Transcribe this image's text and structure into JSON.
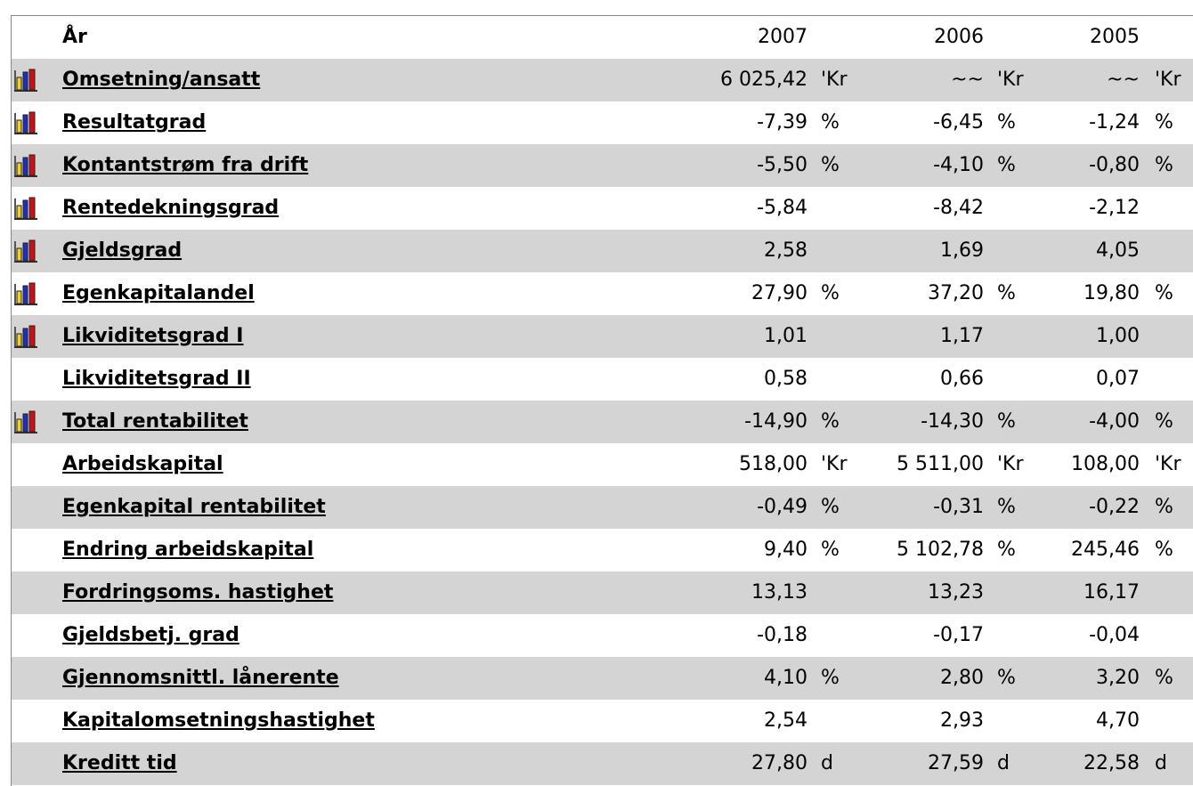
{
  "header": {
    "year_label": "År",
    "years": [
      "2007",
      "2006",
      "2005"
    ]
  },
  "rows": [
    {
      "label": "Omsetning/ansatt",
      "chart": true,
      "cells": [
        {
          "value": "6 025,42",
          "unit": "'Kr"
        },
        {
          "value": "~~",
          "unit": "'Kr"
        },
        {
          "value": "~~",
          "unit": "'Kr"
        }
      ]
    },
    {
      "label": "Resultatgrad",
      "chart": true,
      "cells": [
        {
          "value": "-7,39",
          "unit": "%"
        },
        {
          "value": "-6,45",
          "unit": "%"
        },
        {
          "value": "-1,24",
          "unit": "%"
        }
      ]
    },
    {
      "label": "Kontantstrøm fra drift",
      "chart": true,
      "cells": [
        {
          "value": "-5,50",
          "unit": "%"
        },
        {
          "value": "-4,10",
          "unit": "%"
        },
        {
          "value": "-0,80",
          "unit": "%"
        }
      ]
    },
    {
      "label": "Rentedekningsgrad",
      "chart": true,
      "cells": [
        {
          "value": "-5,84"
        },
        {
          "value": "-8,42"
        },
        {
          "value": "-2,12"
        }
      ]
    },
    {
      "label": "Gjeldsgrad",
      "chart": true,
      "cells": [
        {
          "value": "2,58"
        },
        {
          "value": "1,69"
        },
        {
          "value": "4,05"
        }
      ]
    },
    {
      "label": "Egenkapitalandel",
      "chart": true,
      "cells": [
        {
          "value": "27,90",
          "unit": "%"
        },
        {
          "value": "37,20",
          "unit": "%"
        },
        {
          "value": "19,80",
          "unit": "%"
        }
      ]
    },
    {
      "label": "Likviditetsgrad I",
      "chart": true,
      "cells": [
        {
          "value": "1,01"
        },
        {
          "value": "1,17"
        },
        {
          "value": "1,00"
        }
      ]
    },
    {
      "label": "Likviditetsgrad II",
      "chart": false,
      "cells": [
        {
          "value": "0,58"
        },
        {
          "value": "0,66"
        },
        {
          "value": "0,07"
        }
      ]
    },
    {
      "label": "Total rentabilitet",
      "chart": true,
      "cells": [
        {
          "value": "-14,90",
          "unit": "%"
        },
        {
          "value": "-14,30",
          "unit": "%"
        },
        {
          "value": "-4,00",
          "unit": "%"
        }
      ]
    },
    {
      "label": "Arbeidskapital",
      "chart": false,
      "cells": [
        {
          "value": "518,00",
          "unit": "'Kr"
        },
        {
          "value": "5 511,00",
          "unit": "'Kr"
        },
        {
          "value": "108,00",
          "unit": "'Kr"
        }
      ]
    },
    {
      "label": "Egenkapital rentabilitet",
      "chart": false,
      "cells": [
        {
          "value": "-0,49",
          "unit": "%"
        },
        {
          "value": "-0,31",
          "unit": "%"
        },
        {
          "value": "-0,22",
          "unit": "%"
        }
      ]
    },
    {
      "label": "Endring arbeidskapital",
      "chart": false,
      "cells": [
        {
          "value": "9,40",
          "unit": "%"
        },
        {
          "value": "5 102,78",
          "unit": "%"
        },
        {
          "value": "245,46",
          "unit": "%"
        }
      ]
    },
    {
      "label": "Fordringsoms. hastighet",
      "chart": false,
      "cells": [
        {
          "value": "13,13"
        },
        {
          "value": "13,23"
        },
        {
          "value": "16,17"
        }
      ]
    },
    {
      "label": "Gjeldsbetj. grad",
      "chart": false,
      "cells": [
        {
          "value": "-0,18"
        },
        {
          "value": "-0,17"
        },
        {
          "value": "-0,04"
        }
      ]
    },
    {
      "label": "Gjennomsnittl. lånerente",
      "chart": false,
      "cells": [
        {
          "value": "4,10",
          "unit": "%"
        },
        {
          "value": "2,80",
          "unit": "%"
        },
        {
          "value": "3,20",
          "unit": "%"
        }
      ]
    },
    {
      "label": "Kapitalomsetningshastighet",
      "chart": false,
      "cells": [
        {
          "value": "2,54"
        },
        {
          "value": "2,93"
        },
        {
          "value": "4,70"
        }
      ]
    },
    {
      "label": "Kreditt tid",
      "chart": false,
      "cells": [
        {
          "value": "27,80",
          "unit": "d"
        },
        {
          "value": "27,59",
          "unit": "d"
        },
        {
          "value": "22,58",
          "unit": "d"
        }
      ]
    }
  ]
}
